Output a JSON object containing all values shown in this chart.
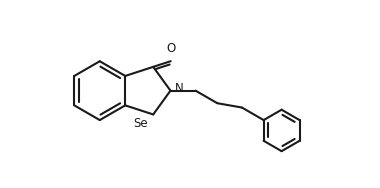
{
  "bg_color": "#ffffff",
  "line_color": "#1a1a1a",
  "line_width": 1.5,
  "figsize": [
    3.8,
    1.88
  ],
  "dpi": 100,
  "font_size": 8.5,
  "xlim": [
    -0.3,
    8.5
  ],
  "ylim": [
    1.8,
    7.2
  ]
}
